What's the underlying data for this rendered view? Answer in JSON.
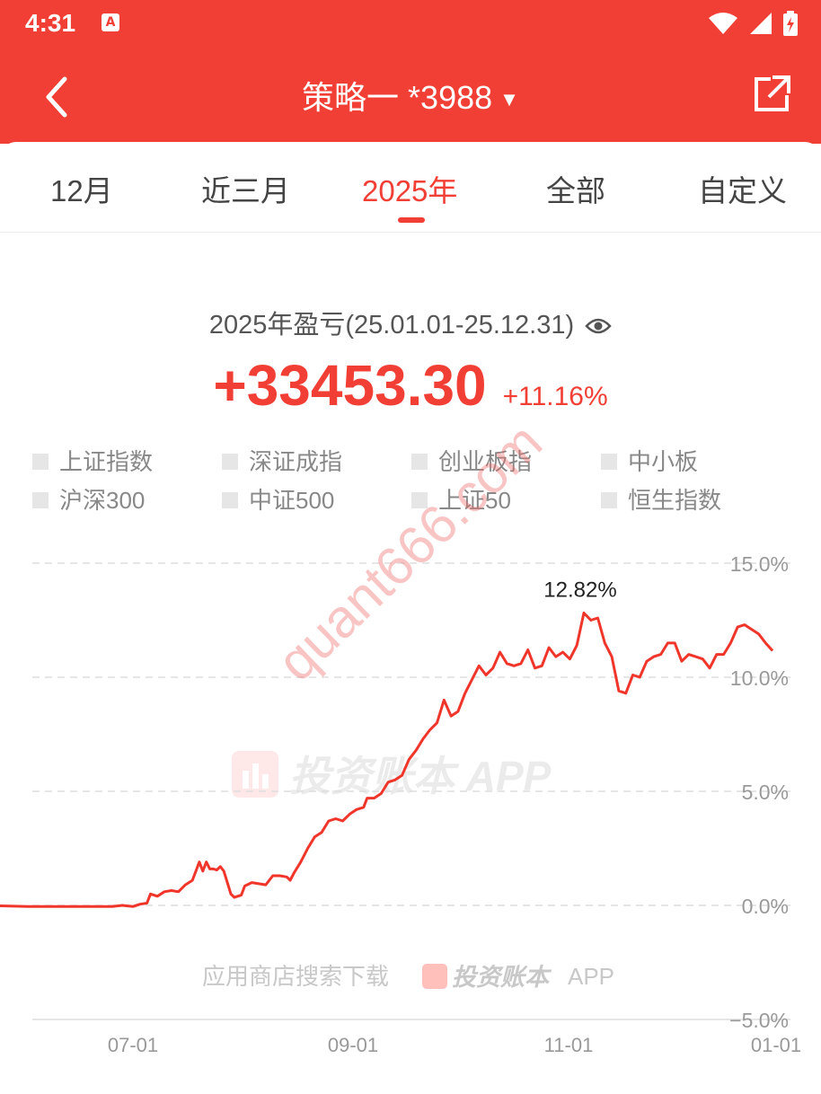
{
  "status_bar": {
    "time": "4:31",
    "notification_glyph": "A"
  },
  "header": {
    "title": "策略一 *3988",
    "back_icon": "back-chevron-icon",
    "share_icon": "share-icon"
  },
  "tabs": [
    {
      "label": "12月"
    },
    {
      "label": "近三月"
    },
    {
      "label": "2025年",
      "active": true
    },
    {
      "label": "全部"
    },
    {
      "label": "自定义"
    }
  ],
  "summary": {
    "period_label": "2025年盈亏(25.01.01-25.12.31)",
    "pnl_amount": "+33453.30",
    "pnl_percent": "+11.16%"
  },
  "benchmarks": [
    "上证指数",
    "深证成指",
    "创业板指",
    "中小板",
    "沪深300",
    "中证500",
    "上证50",
    "恒生指数"
  ],
  "watermarks": {
    "diagonal": "quant666.com",
    "center": "投资账本 APP",
    "footer_prefix": "应用商店搜索下载",
    "footer_brand": "投资账本",
    "footer_suffix": "APP"
  },
  "colors": {
    "accent": "#f23f35",
    "status_bar": "#f23f35",
    "line": "#f0362b"
  },
  "chart_data": {
    "type": "line",
    "x_ticks": [
      "07-01",
      "09-01",
      "11-01",
      "01-01"
    ],
    "y_ticks": [
      "15.0%",
      "10.0%",
      "5.0%",
      "0.0%",
      "−5.0%"
    ],
    "ylim": [
      -5,
      15
    ],
    "grid": true,
    "peak_label": "12.82%",
    "series": [
      {
        "x": [
          "2025-05-18",
          "2025-06-01",
          "2025-06-15",
          "2025-06-25",
          "2025-06-28",
          "2025-07-01",
          "2025-07-03",
          "2025-07-05",
          "2025-07-06",
          "2025-07-08",
          "2025-07-10",
          "2025-07-12",
          "2025-07-14",
          "2025-07-16",
          "2025-07-18",
          "2025-07-20",
          "2025-07-21",
          "2025-07-22",
          "2025-07-23",
          "2025-07-24",
          "2025-07-25",
          "2025-07-26",
          "2025-07-27",
          "2025-07-29",
          "2025-07-30",
          "2025-07-31",
          "2025-08-01",
          "2025-08-02",
          "2025-08-04",
          "2025-08-06",
          "2025-08-08",
          "2025-08-10",
          "2025-08-12",
          "2025-08-14",
          "2025-08-15",
          "2025-08-16",
          "2025-08-18",
          "2025-08-20",
          "2025-08-22",
          "2025-08-24",
          "2025-08-26",
          "2025-08-28",
          "2025-08-30",
          "2025-09-01",
          "2025-09-03",
          "2025-09-05",
          "2025-09-06",
          "2025-09-08",
          "2025-09-10",
          "2025-09-12",
          "2025-09-14",
          "2025-09-16",
          "2025-09-18",
          "2025-09-20",
          "2025-09-22",
          "2025-09-24",
          "2025-09-26",
          "2025-09-28",
          "2025-09-30",
          "2025-10-02",
          "2025-10-04",
          "2025-10-06",
          "2025-10-08",
          "2025-10-10",
          "2025-10-12",
          "2025-10-14",
          "2025-10-16",
          "2025-10-18",
          "2025-10-20",
          "2025-10-22",
          "2025-10-24",
          "2025-10-26",
          "2025-10-28",
          "2025-10-30",
          "2025-11-01",
          "2025-11-03",
          "2025-11-05",
          "2025-11-07",
          "2025-11-09",
          "2025-11-11",
          "2025-11-13",
          "2025-11-15",
          "2025-11-17",
          "2025-11-19",
          "2025-11-21",
          "2025-11-23",
          "2025-11-25",
          "2025-11-27",
          "2025-11-29",
          "2025-12-01",
          "2025-12-03",
          "2025-12-05",
          "2025-12-07",
          "2025-12-09",
          "2025-12-11",
          "2025-12-13",
          "2025-12-15",
          "2025-12-17",
          "2025-12-19",
          "2025-12-21",
          "2025-12-23",
          "2025-12-25",
          "2025-12-27",
          "2025-12-29",
          "2025-12-31"
        ],
        "y": [
          0.0,
          -0.05,
          -0.05,
          -0.05,
          0.0,
          -0.05,
          0.05,
          0.1,
          0.5,
          0.4,
          0.6,
          0.65,
          0.6,
          0.9,
          1.1,
          1.9,
          1.5,
          1.9,
          1.6,
          1.6,
          1.55,
          1.7,
          1.5,
          0.5,
          0.35,
          0.4,
          0.45,
          0.85,
          1.0,
          0.95,
          0.9,
          1.3,
          1.3,
          1.25,
          1.1,
          1.4,
          1.9,
          2.5,
          3.0,
          3.2,
          3.7,
          3.8,
          3.7,
          4.0,
          4.2,
          4.3,
          4.7,
          4.7,
          4.9,
          5.4,
          5.5,
          5.7,
          6.4,
          6.8,
          7.3,
          7.7,
          8.0,
          9.0,
          8.3,
          8.5,
          9.3,
          9.9,
          10.5,
          10.1,
          10.4,
          11.1,
          10.6,
          10.5,
          10.6,
          11.2,
          10.4,
          10.5,
          11.3,
          10.9,
          11.1,
          10.8,
          11.4,
          12.82,
          12.5,
          12.6,
          11.5,
          10.9,
          9.4,
          9.3,
          10.1,
          10.0,
          10.7,
          10.9,
          11.0,
          11.5,
          11.5,
          10.7,
          11.0,
          10.9,
          10.8,
          10.4,
          11.0,
          11.0,
          11.5,
          12.2,
          12.3,
          12.1,
          11.9,
          11.5,
          11.16
        ]
      }
    ]
  }
}
